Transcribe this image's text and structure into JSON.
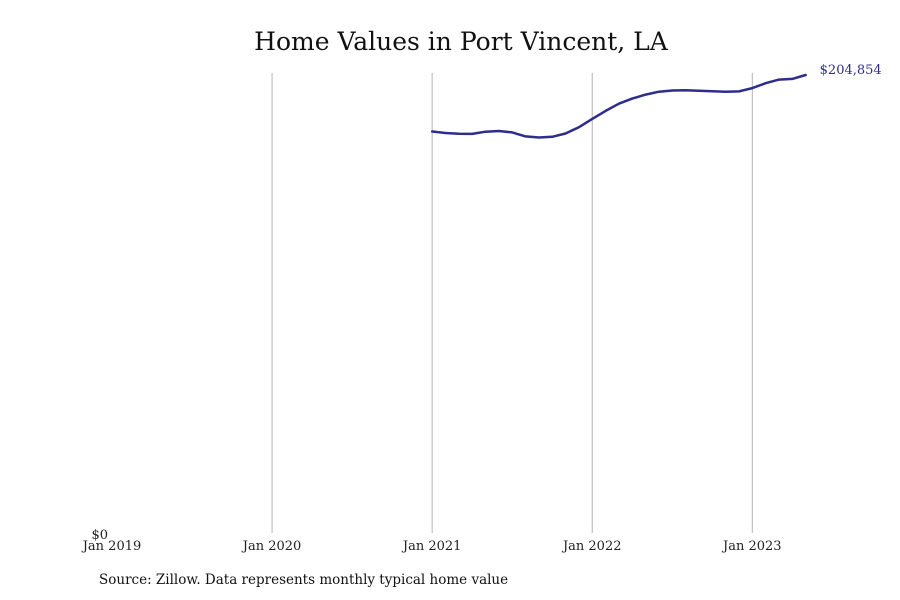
{
  "title": "Home Values in Port Vincent, LA",
  "source_note": "Source: Zillow. Data represents monthly typical home value",
  "colors": {
    "line": "#2e2d8c",
    "grid": "#b3b3b3",
    "text": "#111111"
  },
  "chart_data": {
    "type": "line",
    "title": "Home Values in Port Vincent, LA",
    "xlabel": "",
    "ylabel": "",
    "x_ticks": [
      "Jan 2019",
      "Jan 2020",
      "Jan 2021",
      "Jan 2022",
      "Jan 2023"
    ],
    "y_ticks": [
      "$0"
    ],
    "xlim": [
      "2019-01",
      "2023-06"
    ],
    "ylim": [
      0,
      204854
    ],
    "grid": "vertical",
    "legend": "none",
    "end_label": "$204,854",
    "series": [
      {
        "points": [
          {
            "x": "2021-01",
            "y": 179600
          },
          {
            "x": "2021-02",
            "y": 178900
          },
          {
            "x": "2021-03",
            "y": 178600
          },
          {
            "x": "2021-04",
            "y": 178500
          },
          {
            "x": "2021-05",
            "y": 179500
          },
          {
            "x": "2021-06",
            "y": 179800
          },
          {
            "x": "2021-07",
            "y": 179200
          },
          {
            "x": "2021-08",
            "y": 177400
          },
          {
            "x": "2021-09",
            "y": 176900
          },
          {
            "x": "2021-10",
            "y": 177200
          },
          {
            "x": "2021-11",
            "y": 178700
          },
          {
            "x": "2021-12",
            "y": 181500
          },
          {
            "x": "2022-01",
            "y": 185200
          },
          {
            "x": "2022-02",
            "y": 188800
          },
          {
            "x": "2022-03",
            "y": 192000
          },
          {
            "x": "2022-04",
            "y": 194300
          },
          {
            "x": "2022-05",
            "y": 196100
          },
          {
            "x": "2022-06",
            "y": 197400
          },
          {
            "x": "2022-07",
            "y": 197900
          },
          {
            "x": "2022-08",
            "y": 198000
          },
          {
            "x": "2022-09",
            "y": 197800
          },
          {
            "x": "2022-10",
            "y": 197600
          },
          {
            "x": "2022-11",
            "y": 197400
          },
          {
            "x": "2022-12",
            "y": 197500
          },
          {
            "x": "2023-01",
            "y": 199000
          },
          {
            "x": "2023-02",
            "y": 201200
          },
          {
            "x": "2023-03",
            "y": 202800
          },
          {
            "x": "2023-04",
            "y": 203100
          },
          {
            "x": "2023-05",
            "y": 204854
          }
        ]
      }
    ]
  }
}
